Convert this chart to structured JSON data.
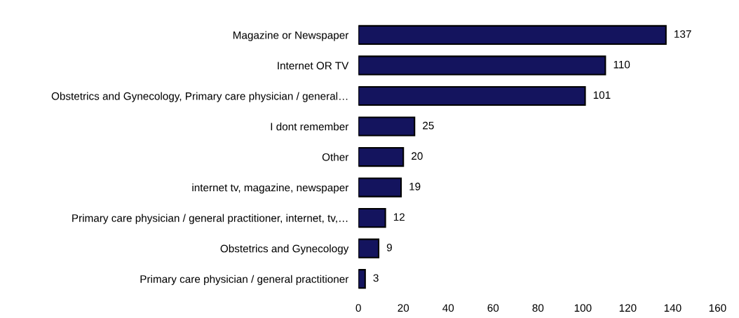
{
  "chart_data": {
    "type": "bar",
    "orientation": "horizontal",
    "categories": [
      "Magazine or Newspaper",
      "Internet OR TV",
      "Obstetrics and Gynecology, Primary care physician / general…",
      "I dont remember",
      "Other",
      "internet tv, magazine, newspaper",
      "Primary care physician / general practitioner, internet, tv,…",
      "Obstetrics and Gynecology",
      "Primary care physician / general practitioner"
    ],
    "values": [
      137,
      110,
      101,
      25,
      20,
      19,
      12,
      9,
      3
    ],
    "color": "#14145e",
    "xlim": [
      0,
      160
    ],
    "xticks": [
      0,
      20,
      40,
      60,
      80,
      100,
      120,
      140,
      160
    ],
    "data_labels": true,
    "grid": false,
    "legend": false
  }
}
